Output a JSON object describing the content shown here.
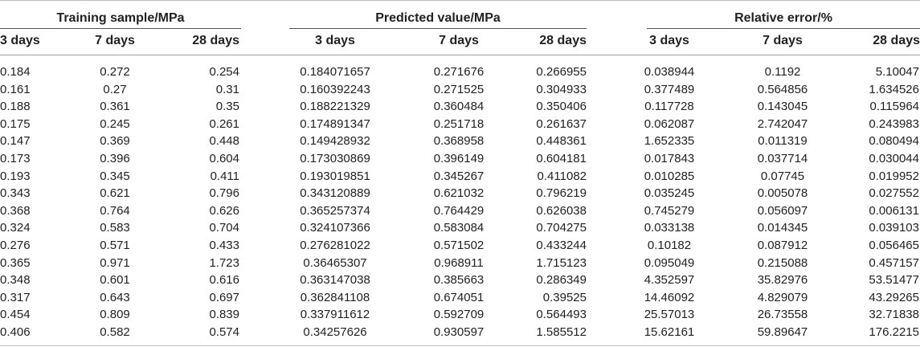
{
  "groups": [
    {
      "label": "Training sample/MPa"
    },
    {
      "label": "Predicted value/MPa"
    },
    {
      "label": "Relative error/%"
    }
  ],
  "subheaders": [
    "3 days",
    "7 days",
    "28 days",
    "3 days",
    "7 days",
    "28 days",
    "3 days",
    "7 days",
    "28 days"
  ],
  "rows": [
    [
      "0.184",
      "0.272",
      "0.254",
      "0.184071657",
      "0.271676",
      "0.266955",
      "0.038944",
      "0.1192",
      "5.10047"
    ],
    [
      "0.161",
      "0.27",
      "0.31",
      "0.160392243",
      "0.271525",
      "0.304933",
      "0.377489",
      "0.564856",
      "1.634526"
    ],
    [
      "0.188",
      "0.361",
      "0.35",
      "0.188221329",
      "0.360484",
      "0.350406",
      "0.117728",
      "0.143045",
      "0.115964"
    ],
    [
      "0.175",
      "0.245",
      "0.261",
      "0.174891347",
      "0.251718",
      "0.261637",
      "0.062087",
      "2.742047",
      "0.243983"
    ],
    [
      "0.147",
      "0.369",
      "0.448",
      "0.149428932",
      "0.368958",
      "0.448361",
      "1.652335",
      "0.011319",
      "0.080494"
    ],
    [
      "0.173",
      "0.396",
      "0.604",
      "0.173030869",
      "0.396149",
      "0.604181",
      "0.017843",
      "0.037714",
      "0.030044"
    ],
    [
      "0.193",
      "0.345",
      "0.411",
      "0.193019851",
      "0.345267",
      "0.411082",
      "0.010285",
      "0.07745",
      "0.019952"
    ],
    [
      "0.343",
      "0.621",
      "0.796",
      "0.343120889",
      "0.621032",
      "0.796219",
      "0.035245",
      "0.005078",
      "0.027552"
    ],
    [
      "0.368",
      "0.764",
      "0.626",
      "0.365257374",
      "0.764429",
      "0.626038",
      "0.745279",
      "0.056097",
      "0.006131"
    ],
    [
      "0.324",
      "0.583",
      "0.704",
      "0.324107366",
      "0.583084",
      "0.704275",
      "0.033138",
      "0.014345",
      "0.039103"
    ],
    [
      "0.276",
      "0.571",
      "0.433",
      "0.276281022",
      "0.571502",
      "0.433244",
      "0.10182",
      "0.087912",
      "0.056465"
    ],
    [
      "0.365",
      "0.971",
      "1.723",
      "0.36465307",
      "0.968911",
      "1.715123",
      "0.095049",
      "0.215088",
      "0.457157"
    ],
    [
      "0.348",
      "0.601",
      "0.616",
      "0.363147038",
      "0.385663",
      "0.286349",
      "4.352597",
      "35.82976",
      "53.51477"
    ],
    [
      "0.317",
      "0.643",
      "0.697",
      "0.362841108",
      "0.674051",
      "0.39525",
      "14.46092",
      "4.829079",
      "43.29265"
    ],
    [
      "0.454",
      "0.809",
      "0.839",
      "0.337911612",
      "0.592709",
      "0.564493",
      "25.57013",
      "26.73558",
      "32.71838"
    ],
    [
      "0.406",
      "0.582",
      "0.574",
      "0.34257626",
      "0.930597",
      "1.585512",
      "15.62161",
      "59.89647",
      "176.2215"
    ]
  ]
}
